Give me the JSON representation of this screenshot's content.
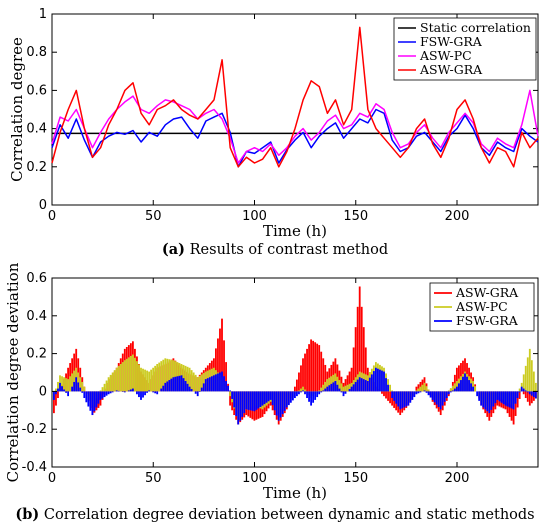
{
  "chart_data": [
    {
      "type": "line",
      "caption_letter": "(a)",
      "caption_text": " Results of contrast method",
      "xlabel": "Time (h)",
      "ylabel": "Correlation degree",
      "xlim": [
        0,
        240
      ],
      "ylim": [
        0,
        1
      ],
      "xticks": [
        "0",
        "50",
        "100",
        "150",
        "200"
      ],
      "yticks": [
        "0",
        "0.2",
        "0.4",
        "0.6",
        "0.8",
        "1"
      ],
      "legend_position": "top-right",
      "static_value": 0.375,
      "series": [
        {
          "name": "Static correlation",
          "color": "#000000",
          "values": "static"
        },
        {
          "name": "FSW-GRA",
          "color": "#0000ff",
          "x": [
            0,
            4,
            8,
            12,
            16,
            20,
            24,
            28,
            32,
            36,
            40,
            44,
            48,
            52,
            56,
            60,
            64,
            68,
            72,
            76,
            80,
            84,
            88,
            92,
            96,
            100,
            104,
            108,
            112,
            116,
            120,
            124,
            128,
            132,
            136,
            140,
            144,
            148,
            152,
            156,
            160,
            164,
            168,
            172,
            176,
            180,
            184,
            188,
            192,
            196,
            200,
            204,
            208,
            212,
            216,
            220,
            224,
            228,
            232,
            236,
            240
          ],
          "values": [
            0.3,
            0.42,
            0.35,
            0.45,
            0.34,
            0.25,
            0.33,
            0.36,
            0.38,
            0.37,
            0.39,
            0.33,
            0.38,
            0.36,
            0.42,
            0.45,
            0.46,
            0.4,
            0.35,
            0.44,
            0.46,
            0.48,
            0.38,
            0.2,
            0.28,
            0.27,
            0.3,
            0.33,
            0.22,
            0.29,
            0.34,
            0.38,
            0.3,
            0.36,
            0.4,
            0.43,
            0.35,
            0.4,
            0.45,
            0.43,
            0.5,
            0.48,
            0.34,
            0.28,
            0.3,
            0.36,
            0.38,
            0.33,
            0.28,
            0.36,
            0.4,
            0.47,
            0.4,
            0.3,
            0.26,
            0.33,
            0.3,
            0.28,
            0.4,
            0.36,
            0.33
          ]
        },
        {
          "name": "ASW-PC",
          "color": "#ff00ff",
          "x": [
            0,
            4,
            8,
            12,
            16,
            20,
            24,
            28,
            32,
            36,
            40,
            44,
            48,
            52,
            56,
            60,
            64,
            68,
            72,
            76,
            80,
            84,
            88,
            92,
            96,
            100,
            104,
            108,
            112,
            116,
            120,
            124,
            128,
            132,
            136,
            140,
            144,
            148,
            152,
            156,
            160,
            164,
            168,
            172,
            176,
            180,
            184,
            188,
            192,
            196,
            200,
            204,
            208,
            212,
            216,
            220,
            224,
            228,
            232,
            236,
            240
          ],
          "values": [
            0.32,
            0.46,
            0.44,
            0.5,
            0.4,
            0.3,
            0.38,
            0.45,
            0.5,
            0.54,
            0.57,
            0.5,
            0.48,
            0.52,
            0.55,
            0.54,
            0.52,
            0.5,
            0.45,
            0.48,
            0.5,
            0.45,
            0.35,
            0.22,
            0.28,
            0.3,
            0.28,
            0.32,
            0.26,
            0.3,
            0.36,
            0.4,
            0.34,
            0.38,
            0.44,
            0.47,
            0.4,
            0.42,
            0.48,
            0.46,
            0.53,
            0.5,
            0.38,
            0.3,
            0.32,
            0.38,
            0.42,
            0.35,
            0.3,
            0.38,
            0.43,
            0.48,
            0.43,
            0.32,
            0.28,
            0.35,
            0.32,
            0.3,
            0.42,
            0.6,
            0.36
          ]
        },
        {
          "name": "ASW-GRA",
          "color": "#ff0000",
          "x": [
            0,
            4,
            8,
            12,
            16,
            20,
            24,
            28,
            32,
            36,
            40,
            44,
            48,
            52,
            56,
            60,
            64,
            68,
            72,
            76,
            80,
            84,
            88,
            92,
            96,
            100,
            104,
            108,
            112,
            116,
            120,
            124,
            128,
            132,
            136,
            140,
            144,
            148,
            152,
            156,
            160,
            164,
            168,
            172,
            176,
            180,
            184,
            188,
            192,
            196,
            200,
            204,
            208,
            212,
            216,
            220,
            224,
            228,
            232,
            236,
            240
          ],
          "values": [
            0.22,
            0.38,
            0.5,
            0.6,
            0.4,
            0.25,
            0.3,
            0.42,
            0.5,
            0.6,
            0.64,
            0.48,
            0.42,
            0.5,
            0.52,
            0.55,
            0.5,
            0.47,
            0.45,
            0.5,
            0.55,
            0.76,
            0.3,
            0.2,
            0.25,
            0.22,
            0.24,
            0.3,
            0.2,
            0.28,
            0.4,
            0.55,
            0.65,
            0.62,
            0.48,
            0.55,
            0.42,
            0.5,
            0.93,
            0.5,
            0.4,
            0.35,
            0.3,
            0.25,
            0.3,
            0.4,
            0.45,
            0.32,
            0.25,
            0.35,
            0.5,
            0.55,
            0.45,
            0.3,
            0.22,
            0.3,
            0.28,
            0.2,
            0.38,
            0.3,
            0.35
          ]
        }
      ]
    },
    {
      "type": "bar",
      "caption_letter": "(b)",
      "caption_text": " Correlation degree deviation between dynamic and static methods",
      "xlabel": "Time (h)",
      "ylabel": "Correlation degree deviation",
      "xlim": [
        0,
        240
      ],
      "ylim": [
        -0.4,
        0.6
      ],
      "xticks": [
        "0",
        "50",
        "100",
        "150",
        "200"
      ],
      "yticks": [
        "-0.4",
        "-0.2",
        "0",
        "0.2",
        "0.4",
        "0.6"
      ],
      "legend_position": "top-right",
      "series": [
        {
          "name": "ASW-GRA",
          "color": "#ff0000"
        },
        {
          "name": "ASW-PC",
          "color": "#cccc22"
        },
        {
          "name": "FSW-GRA",
          "color": "#0000ff"
        }
      ]
    }
  ]
}
